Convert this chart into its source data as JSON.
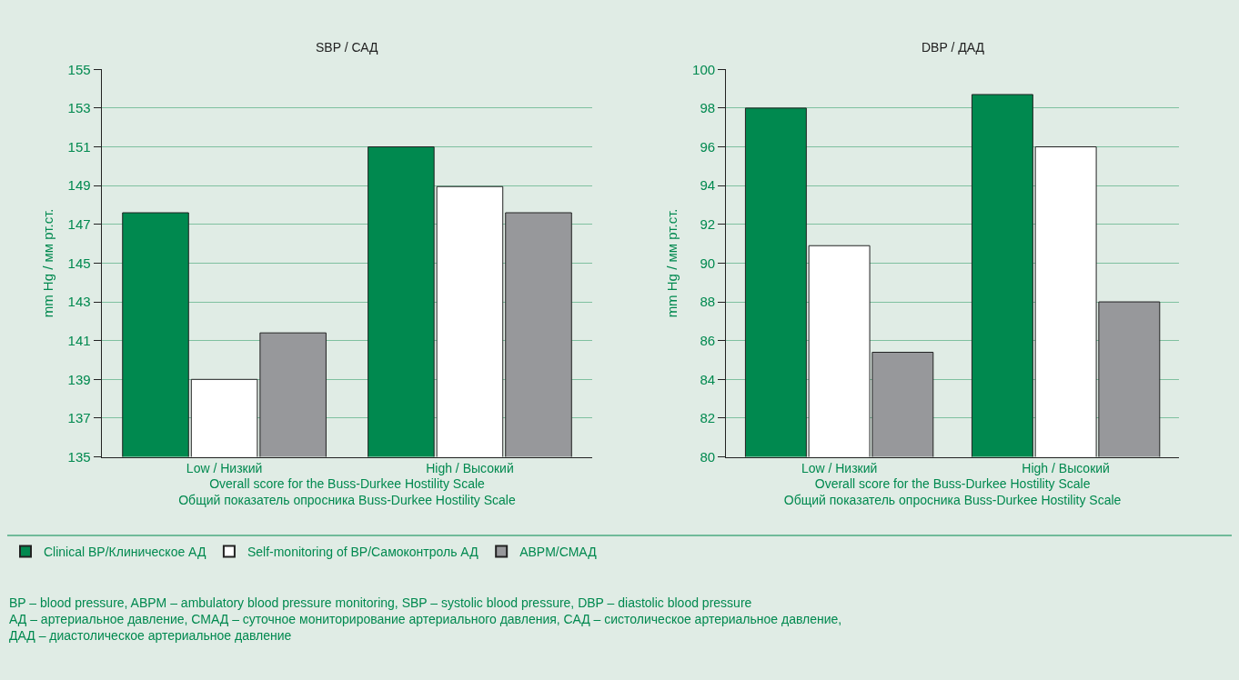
{
  "chart_data": [
    {
      "type": "bar",
      "title": "SBP / САД",
      "xlabel": "Overall score for the Buss-Durkee Hostility Scale\nОбщий показатель опросника Buss-Durkee Hostility Scale",
      "ylabel": "mm Hg / мм рт.ст.",
      "categories": [
        "Low / Низкий",
        "High / Высокий"
      ],
      "series": [
        {
          "name": "Clinical BP/Клиническое АД",
          "color": "#00894f",
          "values": [
            147.6,
            151.0
          ]
        },
        {
          "name": "Self-monitoring of BP/Самоконтроль АД",
          "color": "#ffffff",
          "values": [
            139.0,
            148.95
          ]
        },
        {
          "name": "ABPM/СМАД",
          "color": "#97989b",
          "values": [
            141.4,
            147.6
          ]
        }
      ],
      "ylim": [
        135,
        155
      ],
      "yticks": [
        135,
        137,
        139,
        141,
        143,
        145,
        147,
        149,
        151,
        153,
        155
      ],
      "grid": "y",
      "legend": "bottom",
      "annotations": [
        "BP – blood pressure, ABPM – ambulatory blood pressure monitoring, SBP – systolic blood pressure, DBP – diastolic blood pressure\nАД – артериальное давление, СМАД – суточное мониторирование артериального давления, САД – систолическое артериальное давление,\nДАД – диастолическое артериальное давление"
      ]
    },
    {
      "type": "bar",
      "title": "DBP / ДАД",
      "xlabel": "Overall score for the Buss-Durkee Hostility Scale\nОбщий показатель опросника Buss-Durkee Hostility Scale",
      "ylabel": "mm Hg / мм рт.ст.",
      "categories": [
        "Low / Низкий",
        "High / Высокий"
      ],
      "series": [
        {
          "color": "#00894f",
          "values": [
            98.0,
            98.7
          ]
        },
        {
          "color": "#ffffff",
          "values": [
            90.9,
            96.0
          ]
        },
        {
          "color": "#97989b",
          "values": [
            85.4,
            88.0
          ]
        }
      ],
      "ylim": [
        80,
        100
      ],
      "yticks": [
        80,
        82,
        84,
        86,
        88,
        90,
        92,
        94,
        96,
        98,
        100
      ],
      "grid": "y"
    }
  ]
}
